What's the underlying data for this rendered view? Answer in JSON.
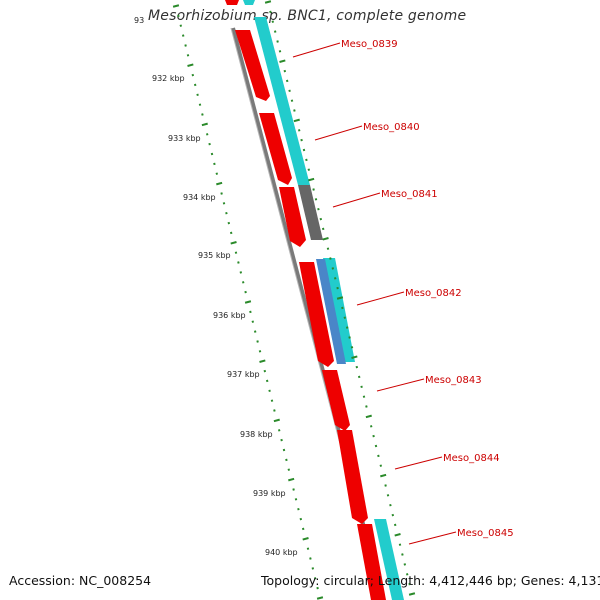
{
  "title": "Mesorhizobium sp. BNC1, complete genome",
  "accession": "Accession: NC_008254",
  "summary": "Topology: circular; Length: 4,412,446 bp; Genes: 4,131",
  "colors": {
    "backbone": "#7a7a7a",
    "forward_gene": "#ee0000",
    "cds": "#22cccc",
    "pseudo": "#666666",
    "rna": "#4a86c8",
    "tick": "#2a8a2a",
    "label": "#cc0000"
  },
  "scale_labels": [
    "93",
    "932 kbp",
    "933 kbp",
    "934 kbp",
    "935 kbp",
    "936 kbp",
    "937 kbp",
    "938 kbp",
    "939 kbp",
    "940 kbp"
  ],
  "gene_labels": [
    "Meso_0839",
    "Meso_0840",
    "Meso_0841",
    "Meso_0842",
    "Meso_0843",
    "Meso_0844",
    "Meso_0845"
  ]
}
